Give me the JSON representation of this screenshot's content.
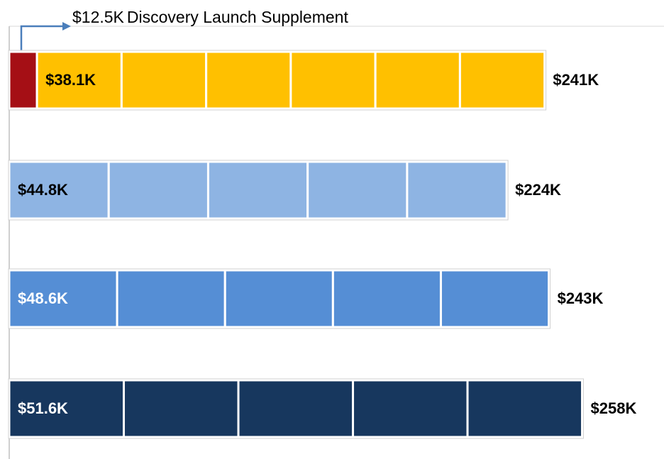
{
  "chart_data": {
    "type": "bar",
    "orientation": "horizontal",
    "stacked": true,
    "supplement": {
      "value": 12.5,
      "value_label": "$12.5K",
      "annotation": "Discovery Launch Supplement",
      "color": "#a50f15"
    },
    "bars": [
      {
        "color": "#ffc000",
        "label_color": "#000000",
        "values": [
          38.1,
          38.1,
          38.1,
          38.1,
          38.1,
          38.1
        ],
        "value_labels": [
          "$38.1K",
          null,
          null,
          null,
          null,
          null
        ],
        "total": 241,
        "total_label": "$241K"
      },
      {
        "color": "#8eb4e3",
        "label_color": "#000000",
        "values": [
          44.8,
          44.8,
          44.8,
          44.8,
          44.8
        ],
        "value_labels": [
          "$44.8K",
          null,
          null,
          null,
          null
        ],
        "total": 224,
        "total_label": "$224K"
      },
      {
        "color": "#558ed5",
        "label_color": "#ffffff",
        "values": [
          48.6,
          48.6,
          48.6,
          48.6,
          48.6
        ],
        "value_labels": [
          "$48.6K",
          null,
          null,
          null,
          null
        ],
        "total": 243,
        "total_label": "$243K"
      },
      {
        "color": "#17375e",
        "label_color": "#ffffff",
        "values": [
          51.6,
          51.6,
          51.6,
          51.6,
          51.6
        ],
        "value_labels": [
          "$51.6K",
          null,
          null,
          null,
          null
        ],
        "total": 258,
        "total_label": "$258K"
      }
    ]
  }
}
